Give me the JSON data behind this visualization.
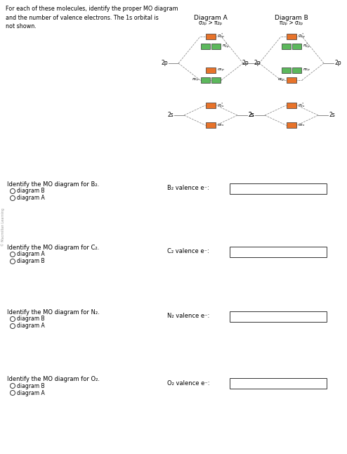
{
  "title_text": "For each of these molecules, identify the proper MO diagram\nand the number of valence electrons. The 1s orbital is\nnot shown.",
  "diagram_a_title": "Diagram A",
  "diagram_a_subtitle": "σ₂ₚ > π₂ₚ",
  "diagram_b_title": "Diagram B",
  "diagram_b_subtitle": "π₂ₚ > σ₂ₚ",
  "orange_color": "#E8732A",
  "green_color": "#5CB85C",
  "bg_color": "#FFFFFF",
  "text_color": "#000000",
  "q1_label": "Identify the MO diagram for B₂.",
  "q1_opt1": "diagram B",
  "q1_opt2": "diagram A",
  "q1_valence": "B₂ valence e⁻:",
  "q2_label": "Identify the MO diagram for C₂.",
  "q2_opt1": "diagram A",
  "q2_opt2": "diagram B",
  "q2_valence": "C₂ valence e⁻:",
  "q3_label": "Identify the MO diagram for N₂.",
  "q3_opt1": "diagram B",
  "q3_opt2": "diagram A",
  "q3_valence": "N₂ valence e⁻:",
  "q4_label": "Identify the MO diagram for O₂.",
  "q4_opt1": "diagram B",
  "q4_opt2": "diagram A",
  "q4_valence": "O₂ valence e⁻:",
  "watermark": "© Macmillan Learning"
}
